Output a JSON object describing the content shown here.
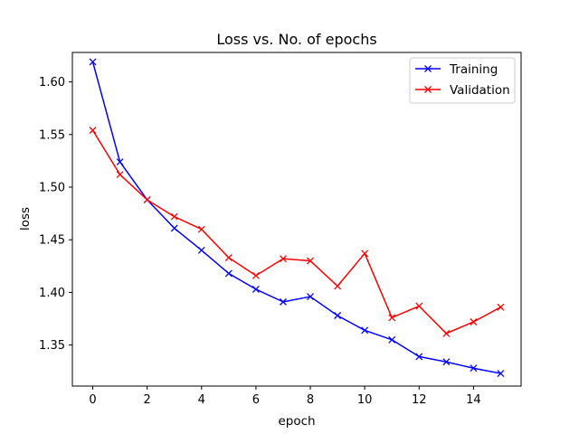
{
  "chart_data": {
    "type": "line",
    "title": "Loss vs. No. of epochs",
    "xlabel": "epoch",
    "ylabel": "loss",
    "xlim": [
      -0.75,
      15.75
    ],
    "ylim": [
      1.311,
      1.628
    ],
    "xticks": [
      0,
      2,
      4,
      6,
      8,
      10,
      12,
      14
    ],
    "yticks": [
      1.35,
      1.4,
      1.45,
      1.5,
      1.55,
      1.6
    ],
    "grid": false,
    "legend_position": "top-right",
    "x": [
      0,
      1,
      2,
      3,
      4,
      5,
      6,
      7,
      8,
      9,
      10,
      11,
      12,
      13,
      14,
      15
    ],
    "series": [
      {
        "name": "Training",
        "color": "#0000ff",
        "marker": "x",
        "values": [
          1.619,
          1.524,
          1.488,
          1.461,
          1.44,
          1.418,
          1.403,
          1.391,
          1.396,
          1.378,
          1.364,
          1.355,
          1.339,
          1.334,
          1.328,
          1.323
        ]
      },
      {
        "name": "Validation",
        "color": "#ff0000",
        "marker": "x",
        "values": [
          1.554,
          1.512,
          1.488,
          1.472,
          1.46,
          1.433,
          1.416,
          1.432,
          1.43,
          1.406,
          1.437,
          1.376,
          1.387,
          1.361,
          1.372,
          1.386
        ]
      }
    ]
  }
}
